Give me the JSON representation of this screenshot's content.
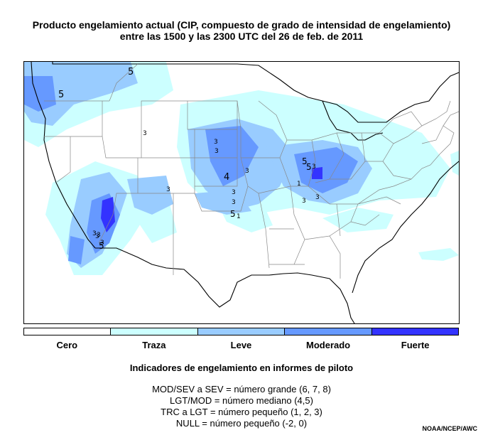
{
  "title": {
    "line1": "Producto engelamiento actual (CIP, compuesto de grado de intensidad de engelamiento)",
    "line2": "entre las 1500 y las 2300 UTC del 26 de feb. de 2011"
  },
  "legend": {
    "categories": [
      {
        "label": "Cero",
        "color": "#ffffff"
      },
      {
        "label": "Traza",
        "color": "#ccffff"
      },
      {
        "label": "Leve",
        "color": "#99ccff"
      },
      {
        "label": "Moderado",
        "color": "#6699ff"
      },
      {
        "label": "Fuerte",
        "color": "#3333ff"
      }
    ]
  },
  "pirep_legend": {
    "title": "Indicadores de engelamiento en informes de piloto",
    "lines": [
      "MOD/SEV a SEV = número grande (6, 7, 8)",
      "LGT/MOD = número mediano (4,5)",
      "TRC a LGT = número pequeño (1, 2, 3)",
      "NULL = número pequeño (-2, 0)"
    ]
  },
  "credit": "NOAA/NCEP/AWC",
  "map": {
    "pilot_reports": [
      "5",
      "5",
      "3",
      "3",
      "3",
      "3",
      "3",
      "4",
      "3",
      "3",
      "5",
      "1",
      "5",
      "5",
      "3",
      "1",
      "3",
      "3",
      "3",
      "3",
      "3",
      "3",
      "5"
    ]
  }
}
